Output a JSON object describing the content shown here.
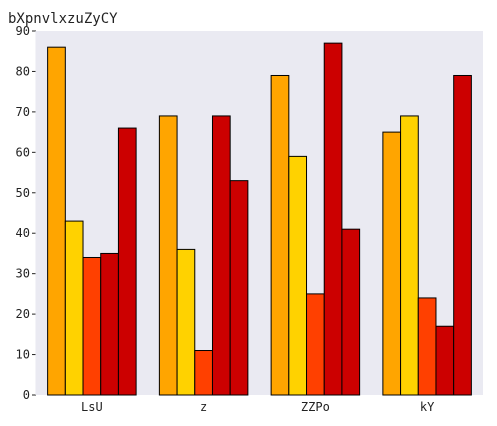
{
  "chart_data": {
    "type": "bar",
    "title": "bXpnvlxzuZyCY",
    "xlabel": "",
    "ylabel": "",
    "categories": [
      "LsU",
      "z",
      "ZZPo",
      "kY"
    ],
    "series": [
      {
        "values": [
          86,
          69,
          79,
          65
        ],
        "color": "#ffa500"
      },
      {
        "values": [
          43,
          36,
          59,
          69
        ],
        "color": "#ffd200"
      },
      {
        "values": [
          34,
          11,
          25,
          24
        ],
        "color": "#ff4000"
      },
      {
        "values": [
          35,
          69,
          87,
          17
        ],
        "color": "#cc0000"
      },
      {
        "values": [
          66,
          53,
          41,
          79
        ],
        "color": "#cc0000"
      }
    ],
    "ylim": [
      0,
      90
    ],
    "yticks": [
      0,
      10,
      20,
      30,
      40,
      50,
      60,
      70,
      80,
      90
    ],
    "grid": false,
    "plot_background": "#eaeaf2",
    "bar_edge_color": "#000000"
  }
}
